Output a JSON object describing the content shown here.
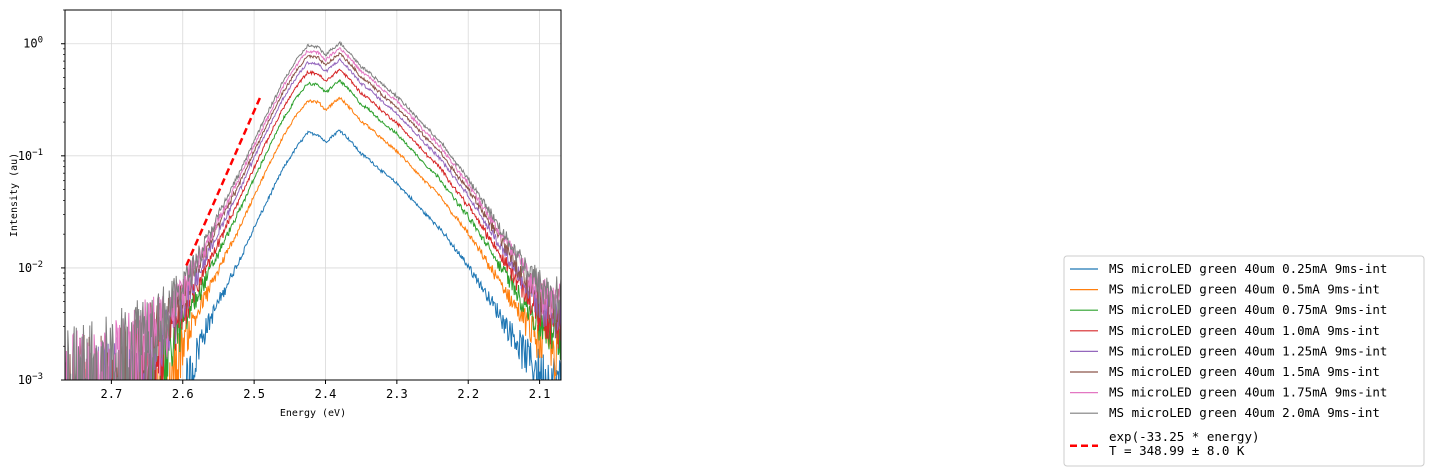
{
  "chart_data": {
    "type": "line",
    "title": "",
    "xlabel": "Energy (eV)",
    "ylabel": "Intensity (au)",
    "x_scale": "linear",
    "x_inverted": true,
    "xlim": [
      2.765,
      2.07
    ],
    "y_scale": "log",
    "ylim": [
      0.001,
      2.0
    ],
    "grid": true,
    "legend_position": "lower-right, outside plot",
    "x_ticks": [
      "2.7",
      "2.6",
      "2.5",
      "2.4",
      "2.3",
      "2.2",
      "2.1"
    ],
    "x_tick_values": [
      2.7,
      2.6,
      2.5,
      2.4,
      2.3,
      2.2,
      2.1
    ],
    "y_ticks": [
      {
        "value": 0.001,
        "base": "10",
        "exp": "−3"
      },
      {
        "value": 0.01,
        "base": "10",
        "exp": "−2"
      },
      {
        "value": 0.1,
        "base": "10",
        "exp": "−1"
      },
      {
        "value": 1,
        "base": "10",
        "exp": "0"
      }
    ],
    "shape_energy": [
      2.765,
      2.7,
      2.65,
      2.62,
      2.6,
      2.58,
      2.56,
      2.54,
      2.52,
      2.5,
      2.48,
      2.46,
      2.44,
      2.425,
      2.41,
      2.4,
      2.39,
      2.38,
      2.365,
      2.35,
      2.34,
      2.32,
      2.3,
      2.28,
      2.26,
      2.24,
      2.22,
      2.2,
      2.18,
      2.16,
      2.14,
      2.12,
      2.1,
      2.07
    ],
    "shape_relative": [
      0.0014,
      0.0018,
      0.0026,
      0.0038,
      0.006,
      0.0105,
      0.019,
      0.035,
      0.063,
      0.12,
      0.22,
      0.4,
      0.64,
      0.85,
      0.82,
      0.7,
      0.8,
      0.9,
      0.72,
      0.55,
      0.5,
      0.38,
      0.3,
      0.22,
      0.16,
      0.12,
      0.08,
      0.055,
      0.035,
      0.022,
      0.014,
      0.009,
      0.006,
      0.0045
    ],
    "series": [
      {
        "name": "MS microLED green 40um 0.25mA 9ms-int",
        "color": "#1f77b4",
        "peak": 0.17,
        "onset": 2.575
      },
      {
        "name": "MS microLED green 40um 0.5mA 9ms-int",
        "color": "#ff7f0e",
        "peak": 0.33,
        "onset": 2.6
      },
      {
        "name": "MS microLED green 40um 0.75mA 9ms-int",
        "color": "#2ca02c",
        "peak": 0.47,
        "onset": 2.615
      },
      {
        "name": "MS microLED green 40um 1.0mA 9ms-int",
        "color": "#d62728",
        "peak": 0.59,
        "onset": 2.625
      },
      {
        "name": "MS microLED green 40um 1.25mA 9ms-int",
        "color": "#9467bd",
        "peak": 0.72,
        "onset": 2.635
      },
      {
        "name": "MS microLED green 40um 1.5mA 9ms-int",
        "color": "#8c564b",
        "peak": 0.82,
        "onset": 2.645
      },
      {
        "name": "MS microLED green 40um 1.75mA 9ms-int",
        "color": "#e377c2",
        "peak": 0.92,
        "onset": 2.655
      },
      {
        "name": "MS microLED green 40um 2.0mA 9ms-int",
        "color": "#7f7f7f",
        "peak": 1.02,
        "onset": 2.665
      }
    ],
    "fit": {
      "label_line1": "exp(-33.25 * energy)",
      "label_line2": "T = 348.99 ± 8.0 K",
      "color": "#ff0000",
      "style": "dashed",
      "x": [
        2.595,
        2.49
      ],
      "y": [
        0.0105,
        0.35
      ]
    }
  }
}
